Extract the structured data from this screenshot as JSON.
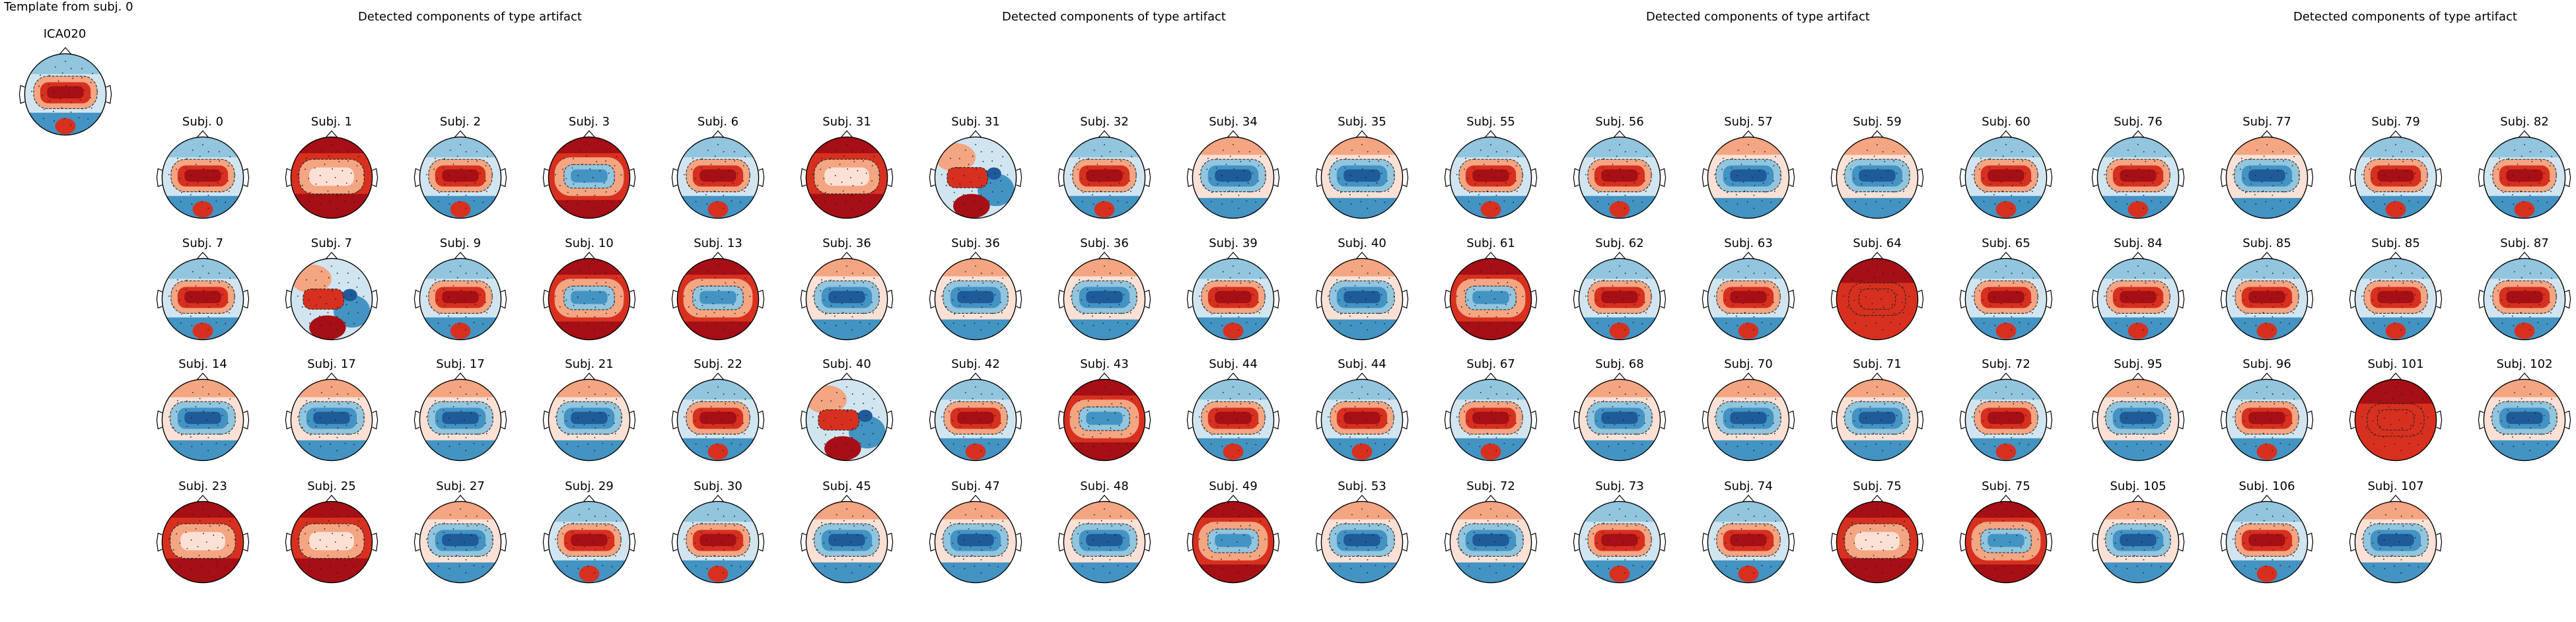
{
  "template": {
    "title": "Template from subj. 0",
    "component": "ICA020",
    "pattern": "pos_center"
  },
  "panels": [
    {
      "title": "Detected components of type artifact",
      "rows": [
        [
          {
            "label": "Subj. 0",
            "pattern": "pos_center"
          },
          {
            "label": "Subj. 1",
            "pattern": "pos_ring"
          },
          {
            "label": "Subj. 2",
            "pattern": "pos_center"
          },
          {
            "label": "Subj. 3",
            "pattern": "neg_center_red_ring"
          },
          {
            "label": "Subj. 6",
            "pattern": "pos_center"
          }
        ],
        [
          {
            "label": "Subj. 7",
            "pattern": "pos_center"
          },
          {
            "label": "Subj. 7",
            "pattern": "mixed"
          },
          {
            "label": "Subj. 9",
            "pattern": "pos_center"
          },
          {
            "label": "Subj. 10",
            "pattern": "neg_center_red_ring"
          },
          {
            "label": "Subj. 13",
            "pattern": "neg_center_red_ring"
          }
        ],
        [
          {
            "label": "Subj. 14",
            "pattern": "neg_center"
          },
          {
            "label": "Subj. 17",
            "pattern": "neg_center"
          },
          {
            "label": "Subj. 17",
            "pattern": "neg_center"
          },
          {
            "label": "Subj. 21",
            "pattern": "neg_center"
          },
          {
            "label": "Subj. 22",
            "pattern": "pos_center"
          }
        ],
        [
          {
            "label": "Subj. 23",
            "pattern": "pos_ring"
          },
          {
            "label": "Subj. 25",
            "pattern": "pos_ring"
          },
          {
            "label": "Subj. 27",
            "pattern": "neg_center"
          },
          {
            "label": "Subj. 29",
            "pattern": "pos_center"
          },
          {
            "label": "Subj. 30",
            "pattern": "pos_center"
          }
        ]
      ]
    },
    {
      "title": "Detected components of type artifact",
      "rows": [
        [
          {
            "label": "Subj. 31",
            "pattern": "pos_ring"
          },
          {
            "label": "Subj. 31",
            "pattern": "mixed"
          },
          {
            "label": "Subj. 32",
            "pattern": "pos_center"
          },
          {
            "label": "Subj. 34",
            "pattern": "neg_center"
          },
          {
            "label": "Subj. 35",
            "pattern": "neg_center"
          }
        ],
        [
          {
            "label": "Subj. 36",
            "pattern": "neg_center"
          },
          {
            "label": "Subj. 36",
            "pattern": "neg_center"
          },
          {
            "label": "Subj. 36",
            "pattern": "neg_center"
          },
          {
            "label": "Subj. 39",
            "pattern": "pos_center"
          },
          {
            "label": "Subj. 40",
            "pattern": "neg_center"
          }
        ],
        [
          {
            "label": "Subj. 40",
            "pattern": "mixed"
          },
          {
            "label": "Subj. 42",
            "pattern": "pos_center"
          },
          {
            "label": "Subj. 43",
            "pattern": "neg_center_red_ring"
          },
          {
            "label": "Subj. 44",
            "pattern": "pos_center"
          },
          {
            "label": "Subj. 44",
            "pattern": "pos_center"
          }
        ],
        [
          {
            "label": "Subj. 45",
            "pattern": "neg_center"
          },
          {
            "label": "Subj. 47",
            "pattern": "neg_center"
          },
          {
            "label": "Subj. 48",
            "pattern": "neg_center"
          },
          {
            "label": "Subj. 49",
            "pattern": "neg_center_red_ring"
          },
          {
            "label": "Subj. 53",
            "pattern": "neg_center"
          }
        ]
      ]
    },
    {
      "title": "Detected components of type artifact",
      "rows": [
        [
          {
            "label": "Subj. 55",
            "pattern": "pos_center"
          },
          {
            "label": "Subj. 56",
            "pattern": "pos_center"
          },
          {
            "label": "Subj. 57",
            "pattern": "neg_center"
          },
          {
            "label": "Subj. 59",
            "pattern": "neg_center"
          },
          {
            "label": "Subj. 60",
            "pattern": "pos_center"
          }
        ],
        [
          {
            "label": "Subj. 61",
            "pattern": "neg_center_red_ring"
          },
          {
            "label": "Subj. 62",
            "pattern": "pos_center"
          },
          {
            "label": "Subj. 63",
            "pattern": "pos_center"
          },
          {
            "label": "Subj. 64",
            "pattern": "full_red"
          },
          {
            "label": "Subj. 65",
            "pattern": "pos_center"
          }
        ],
        [
          {
            "label": "Subj. 67",
            "pattern": "pos_center"
          },
          {
            "label": "Subj. 68",
            "pattern": "neg_center"
          },
          {
            "label": "Subj. 70",
            "pattern": "neg_center"
          },
          {
            "label": "Subj. 71",
            "pattern": "neg_center"
          },
          {
            "label": "Subj. 72",
            "pattern": "pos_center"
          }
        ],
        [
          {
            "label": "Subj. 72",
            "pattern": "neg_center"
          },
          {
            "label": "Subj. 73",
            "pattern": "pos_center"
          },
          {
            "label": "Subj. 74",
            "pattern": "pos_center"
          },
          {
            "label": "Subj. 75",
            "pattern": "pos_ring"
          },
          {
            "label": "Subj. 75",
            "pattern": "neg_center_red_ring"
          }
        ]
      ]
    },
    {
      "title": "Detected components of type artifact",
      "rows": [
        [
          {
            "label": "Subj. 76",
            "pattern": "pos_center"
          },
          {
            "label": "Subj. 77",
            "pattern": "neg_center"
          },
          {
            "label": "Subj. 79",
            "pattern": "pos_center"
          },
          {
            "label": "Subj. 82",
            "pattern": "pos_center"
          }
        ],
        [
          {
            "label": "Subj. 84",
            "pattern": "pos_center"
          },
          {
            "label": "Subj. 85",
            "pattern": "pos_center"
          },
          {
            "label": "Subj. 85",
            "pattern": "pos_center"
          },
          {
            "label": "Subj. 87",
            "pattern": "pos_center"
          }
        ],
        [
          {
            "label": "Subj. 95",
            "pattern": "neg_center"
          },
          {
            "label": "Subj. 96",
            "pattern": "pos_center"
          },
          {
            "label": "Subj. 101",
            "pattern": "full_red"
          },
          {
            "label": "Subj. 102",
            "pattern": "neg_center"
          }
        ],
        [
          {
            "label": "Subj. 105",
            "pattern": "neg_center"
          },
          {
            "label": "Subj. 106",
            "pattern": "pos_center"
          },
          {
            "label": "Subj. 107",
            "pattern": "neg_center"
          }
        ]
      ]
    }
  ],
  "colors": {
    "deep_red": "#a50f15",
    "red": "#d7301f",
    "light_red": "#f4a582",
    "pale_red": "#fbe1d5",
    "white": "#f7f7f7",
    "pale_blue": "#d1e5f0",
    "light_blue": "#92c5de",
    "blue": "#4393c3",
    "deep_blue": "#1f5a99",
    "outline": "#000000"
  }
}
